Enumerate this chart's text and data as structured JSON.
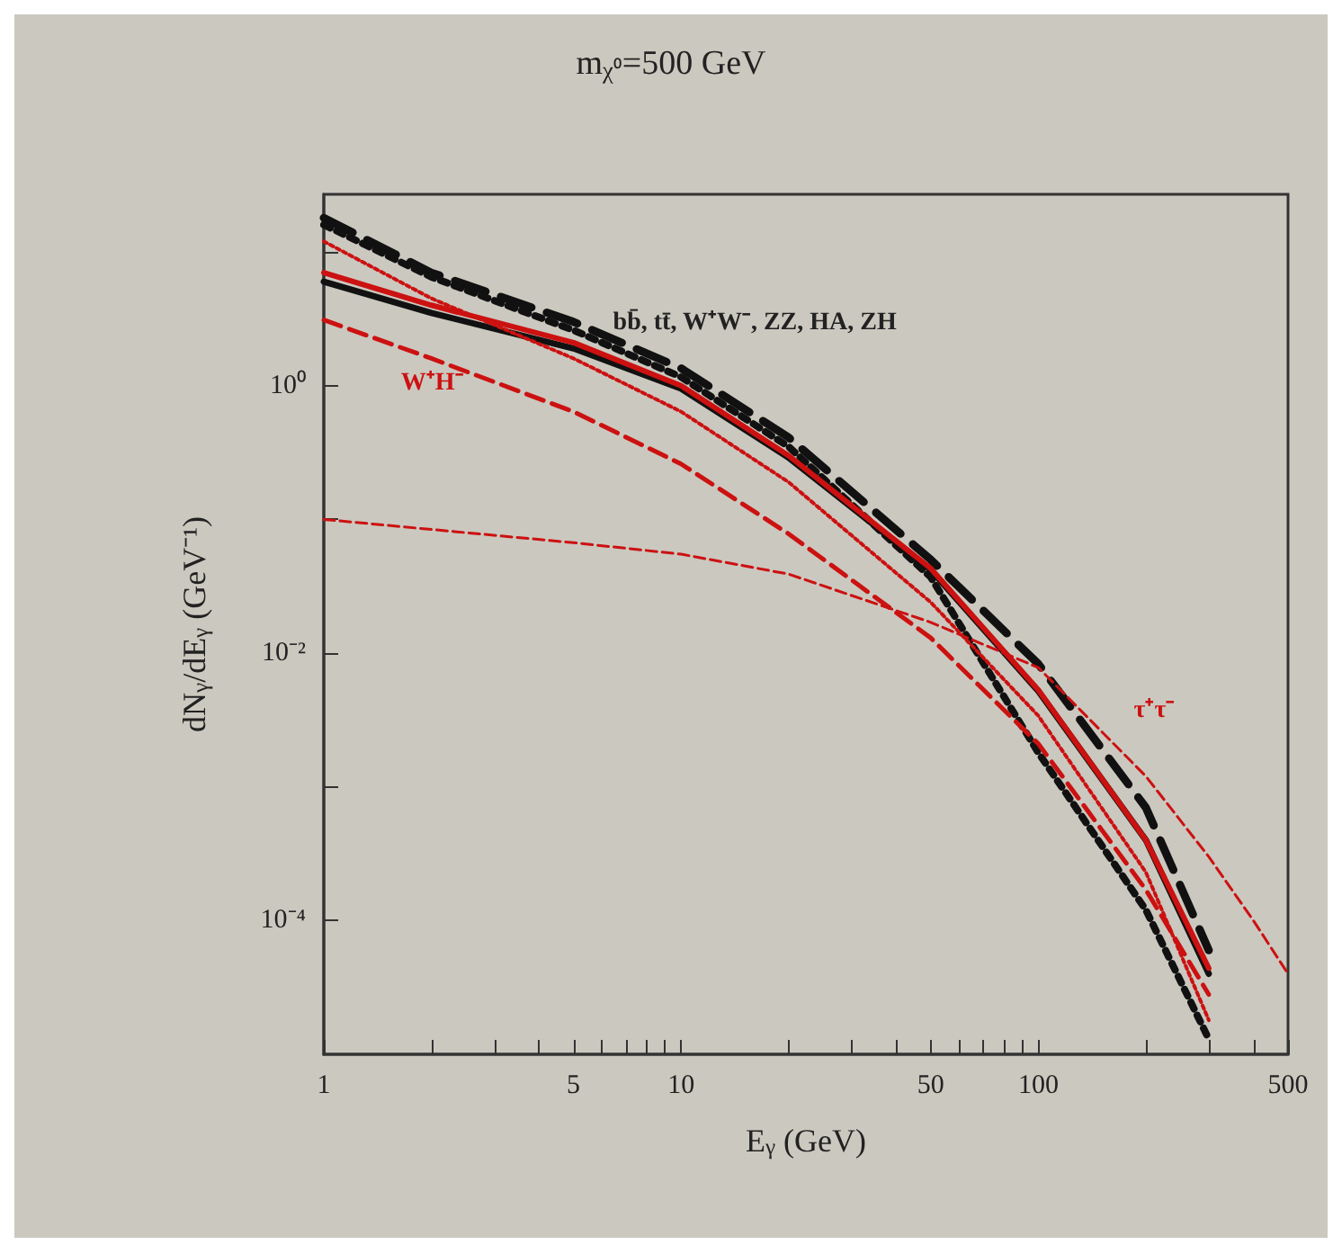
{
  "chart_data": {
    "type": "line",
    "title": "m$_{χ⁰}$=500 GeV",
    "xlabel": "E$_{γ}$ (GeV)",
    "ylabel": "dN$_{γ}$/dE$_{γ}$ (GeV⁻¹)",
    "log": "xy",
    "grid": false,
    "marker": "none",
    "xlim": [
      1,
      500
    ],
    "ylim": [
      1e-05,
      27
    ],
    "xticks": [
      1,
      {
        "value": 2,
        "label": null
      },
      {
        "value": 3,
        "label": null
      },
      {
        "value": 4,
        "label": null
      },
      5,
      {
        "value": 6,
        "label": null
      },
      {
        "value": 7,
        "label": null
      },
      {
        "value": 8,
        "label": null
      },
      {
        "value": 9,
        "label": null
      },
      10,
      {
        "value": 20,
        "label": null
      },
      {
        "value": 30,
        "label": null
      },
      {
        "value": 40,
        "label": null
      },
      50,
      {
        "value": 60,
        "label": null
      },
      {
        "value": 70,
        "label": null
      },
      {
        "value": 80,
        "label": null
      },
      {
        "value": 90,
        "label": null
      },
      100,
      {
        "value": 200,
        "label": null
      },
      {
        "value": 300,
        "label": null
      },
      {
        "value": 400,
        "label": null
      },
      500
    ],
    "yticks": [
      {
        "value": 0.0001,
        "label": "10⁻⁴"
      },
      {
        "value": 0.001,
        "label": null
      },
      {
        "value": 0.01,
        "label": "10⁻²"
      },
      {
        "value": 0.1,
        "label": null
      },
      {
        "value": 1,
        "label": "10⁰"
      },
      {
        "value": 10,
        "label": null
      }
    ],
    "x": [
      1,
      2,
      5,
      10,
      20,
      50,
      100,
      200,
      300
    ],
    "series": [
      {
        "color": "#111111",
        "line_style": "dashed",
        "values": [
          18,
          7,
          3.0,
          1.35,
          0.41,
          0.05,
          0.0083,
          0.0007,
          6e-05
        ]
      },
      {
        "color": "#111111",
        "line_style": "dotted",
        "values": [
          16,
          6.5,
          2.6,
          1.16,
          0.35,
          0.037,
          0.0018,
          0.00012,
          1.3e-05
        ]
      },
      {
        "color": "#111111",
        "line_style": "solid",
        "values": [
          6,
          3.5,
          1.9,
          0.95,
          0.29,
          0.042,
          0.0052,
          0.0004,
          4e-05
        ]
      },
      {
        "color": "#cc1111",
        "line_style": "solid",
        "values": [
          7,
          4,
          2.1,
          1.0,
          0.3,
          0.043,
          0.0053,
          0.0004,
          4.4e-05
        ]
      },
      {
        "color": "#cc1111",
        "line_style": "dashed",
        "values": [
          3.1,
          1.6,
          0.64,
          0.26,
          0.078,
          0.013,
          0.0021,
          0.00017,
          2.8e-05
        ]
      },
      {
        "color": "#cc1111",
        "line_style": "dotted",
        "values": [
          12,
          4.5,
          1.6,
          0.64,
          0.19,
          0.024,
          0.0034,
          0.00023,
          1.8e-05
        ]
      },
      {
        "color": "#cc1111",
        "line_style": "dashed",
        "x": [
          1,
          5,
          10,
          20,
          50,
          100,
          200,
          300,
          400,
          500
        ],
        "values": [
          0.1,
          0.067,
          0.055,
          0.039,
          0.017,
          0.0078,
          0.0012,
          0.0003,
          0.0001,
          4e-05
        ]
      }
    ],
    "annotations": [
      "bb̄, tt̄, W⁺W⁻, ZZ, HA, ZH",
      "W⁺H⁻",
      "τ⁺τ⁻"
    ]
  }
}
